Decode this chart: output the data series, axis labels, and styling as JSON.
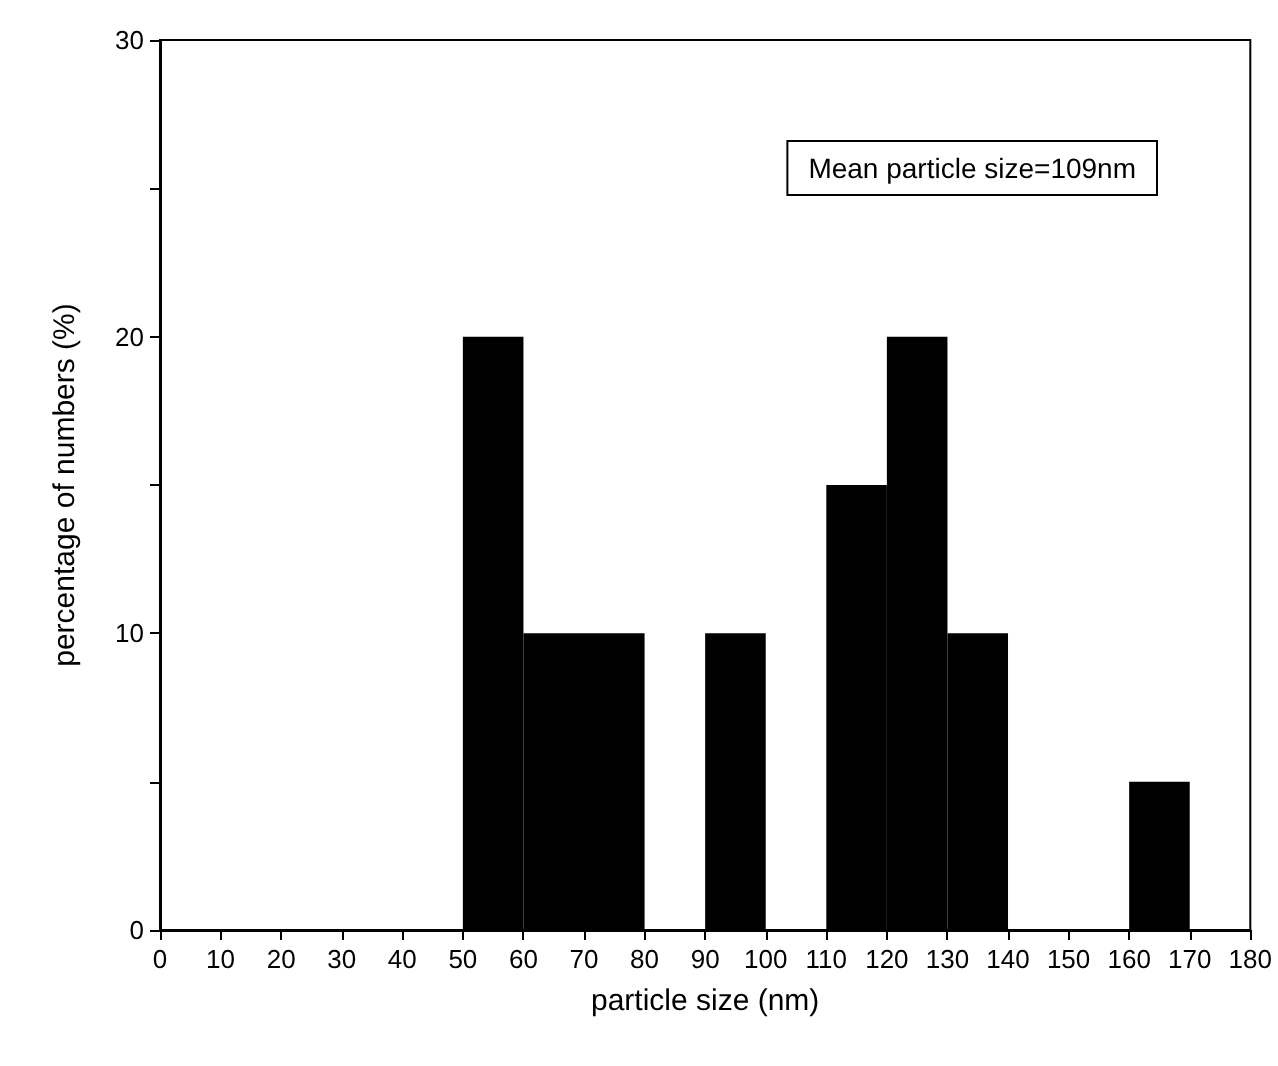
{
  "chart_data": {
    "type": "histogram",
    "xlabel": "particle size (nm)",
    "ylabel": "percentage of numbers (%)",
    "bins": [
      50,
      60,
      70,
      80,
      90,
      100,
      110,
      120,
      130,
      140,
      150,
      160,
      170
    ],
    "values": [
      20,
      10,
      10,
      0,
      10,
      0,
      15,
      20,
      10,
      0,
      0,
      5
    ],
    "color": "#000000",
    "xlim": [
      0,
      180
    ],
    "xticks": [
      0,
      10,
      20,
      30,
      40,
      50,
      60,
      70,
      80,
      90,
      100,
      110,
      120,
      130,
      140,
      150,
      160,
      170,
      180
    ],
    "ylim": [
      0,
      30
    ],
    "yticks": [
      0,
      {
        "value": 5,
        "label": null
      },
      10,
      {
        "value": 15,
        "label": null
      },
      20,
      {
        "value": 25,
        "label": null
      },
      30
    ],
    "annotations": [
      "Mean particle size=109nm"
    ],
    "grid": false
  }
}
